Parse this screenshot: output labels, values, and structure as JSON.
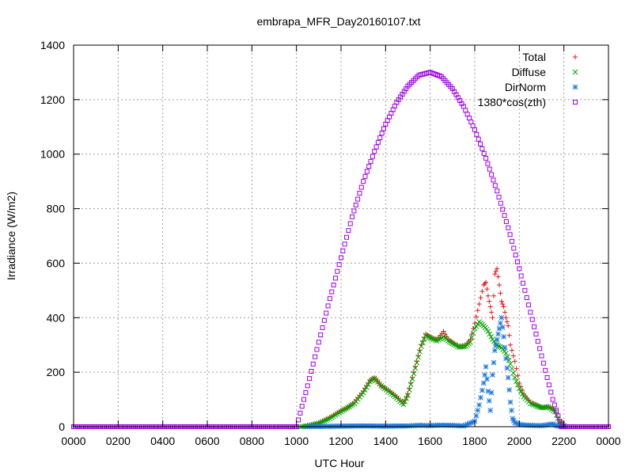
{
  "chart_data": {
    "type": "scatter",
    "title": "embrapa_MFR_Day20160107.txt",
    "xlabel": "UTC Hour",
    "ylabel": "Irradiance (W/m2)",
    "x_ticks": [
      "0000",
      "0200",
      "0400",
      "0600",
      "0800",
      "1000",
      "1200",
      "1400",
      "1600",
      "1800",
      "2000",
      "2200",
      "0000"
    ],
    "y_ticks": [
      "0",
      "200",
      "400",
      "600",
      "800",
      "1000",
      "1200",
      "1400"
    ],
    "xlim": [
      0,
      24
    ],
    "ylim": [
      0,
      1400
    ],
    "grid": true,
    "legend_position": "top-right",
    "series": [
      {
        "name": "Total",
        "color": "#e8161b",
        "marker": "plus",
        "points": [
          [
            10.5,
            5
          ],
          [
            11.0,
            15
          ],
          [
            11.5,
            35
          ],
          [
            12.0,
            60
          ],
          [
            12.3,
            70
          ],
          [
            12.6,
            90
          ],
          [
            13.0,
            130
          ],
          [
            13.3,
            170
          ],
          [
            13.5,
            180
          ],
          [
            13.8,
            150
          ],
          [
            14.2,
            130
          ],
          [
            14.5,
            110
          ],
          [
            14.8,
            85
          ],
          [
            15.0,
            120
          ],
          [
            15.2,
            180
          ],
          [
            15.4,
            240
          ],
          [
            15.6,
            300
          ],
          [
            15.8,
            340
          ],
          [
            16.0,
            330
          ],
          [
            16.3,
            320
          ],
          [
            16.6,
            350
          ],
          [
            16.8,
            320
          ],
          [
            17.0,
            310
          ],
          [
            17.3,
            295
          ],
          [
            17.6,
            300
          ],
          [
            17.8,
            320
          ],
          [
            18.0,
            380
          ],
          [
            18.2,
            450
          ],
          [
            18.4,
            520
          ],
          [
            18.5,
            530
          ],
          [
            18.6,
            480
          ],
          [
            18.7,
            440
          ],
          [
            18.8,
            400
          ],
          [
            18.9,
            560
          ],
          [
            19.0,
            580
          ],
          [
            19.1,
            520
          ],
          [
            19.2,
            460
          ],
          [
            19.3,
            440
          ],
          [
            19.4,
            400
          ],
          [
            19.5,
            370
          ],
          [
            19.6,
            300
          ],
          [
            19.8,
            240
          ],
          [
            20.0,
            160
          ],
          [
            20.2,
            120
          ],
          [
            20.5,
            90
          ],
          [
            20.8,
            80
          ],
          [
            21.0,
            70
          ],
          [
            21.3,
            75
          ],
          [
            21.6,
            60
          ],
          [
            21.8,
            20
          ],
          [
            22.0,
            5
          ]
        ]
      },
      {
        "name": "Diffuse",
        "color": "#00a000",
        "marker": "cross",
        "points": [
          [
            10.2,
            0
          ],
          [
            10.5,
            3
          ],
          [
            11.0,
            12
          ],
          [
            11.5,
            30
          ],
          [
            12.0,
            55
          ],
          [
            12.3,
            70
          ],
          [
            12.6,
            85
          ],
          [
            13.0,
            125
          ],
          [
            13.3,
            165
          ],
          [
            13.5,
            178
          ],
          [
            13.8,
            150
          ],
          [
            14.2,
            125
          ],
          [
            14.5,
            105
          ],
          [
            14.8,
            82
          ],
          [
            15.0,
            115
          ],
          [
            15.2,
            175
          ],
          [
            15.4,
            235
          ],
          [
            15.6,
            295
          ],
          [
            15.8,
            335
          ],
          [
            16.0,
            325
          ],
          [
            16.3,
            315
          ],
          [
            16.6,
            330
          ],
          [
            16.8,
            315
          ],
          [
            17.0,
            305
          ],
          [
            17.3,
            292
          ],
          [
            17.6,
            295
          ],
          [
            17.8,
            310
          ],
          [
            18.0,
            360
          ],
          [
            18.2,
            385
          ],
          [
            18.4,
            370
          ],
          [
            18.6,
            350
          ],
          [
            18.8,
            320
          ],
          [
            19.0,
            300
          ],
          [
            19.2,
            290
          ],
          [
            19.4,
            270
          ],
          [
            19.6,
            230
          ],
          [
            19.8,
            180
          ],
          [
            20.0,
            140
          ],
          [
            20.2,
            110
          ],
          [
            20.5,
            85
          ],
          [
            20.8,
            75
          ],
          [
            21.0,
            70
          ],
          [
            21.3,
            72
          ],
          [
            21.6,
            55
          ],
          [
            21.8,
            18
          ],
          [
            22.0,
            4
          ]
        ]
      },
      {
        "name": "DirNorm",
        "color": "#1e7ae0",
        "marker": "star",
        "points": [
          [
            10.5,
            0
          ],
          [
            11.0,
            1
          ],
          [
            12.0,
            2
          ],
          [
            13.0,
            3
          ],
          [
            14.0,
            2
          ],
          [
            15.0,
            3
          ],
          [
            15.5,
            5
          ],
          [
            16.0,
            4
          ],
          [
            16.5,
            6
          ],
          [
            17.0,
            5
          ],
          [
            17.5,
            3
          ],
          [
            18.0,
            20
          ],
          [
            18.2,
            80
          ],
          [
            18.4,
            160
          ],
          [
            18.5,
            220
          ],
          [
            18.6,
            130
          ],
          [
            18.7,
            60
          ],
          [
            18.8,
            190
          ],
          [
            18.9,
            280
          ],
          [
            19.0,
            320
          ],
          [
            19.1,
            360
          ],
          [
            19.2,
            400
          ],
          [
            19.3,
            330
          ],
          [
            19.4,
            250
          ],
          [
            19.5,
            180
          ],
          [
            19.6,
            90
          ],
          [
            19.7,
            30
          ],
          [
            19.8,
            15
          ],
          [
            20.0,
            8
          ],
          [
            20.5,
            5
          ],
          [
            21.0,
            4
          ],
          [
            21.5,
            10
          ],
          [
            21.7,
            3
          ],
          [
            22.0,
            0
          ]
        ]
      },
      {
        "name": "1380*cos(zth)",
        "color": "#a000e8",
        "marker": "square",
        "points": [
          [
            10.0,
            0
          ],
          [
            10.5,
            150
          ],
          [
            11.0,
            310
          ],
          [
            11.5,
            470
          ],
          [
            12.0,
            620
          ],
          [
            12.5,
            770
          ],
          [
            13.0,
            900
          ],
          [
            13.5,
            1010
          ],
          [
            14.0,
            1110
          ],
          [
            14.5,
            1190
          ],
          [
            15.0,
            1250
          ],
          [
            15.5,
            1290
          ],
          [
            16.0,
            1300
          ],
          [
            16.5,
            1285
          ],
          [
            17.0,
            1240
          ],
          [
            17.5,
            1175
          ],
          [
            18.0,
            1090
          ],
          [
            18.5,
            985
          ],
          [
            19.0,
            865
          ],
          [
            19.5,
            730
          ],
          [
            20.0,
            580
          ],
          [
            20.5,
            420
          ],
          [
            21.0,
            260
          ],
          [
            21.5,
            100
          ],
          [
            21.9,
            0
          ]
        ]
      }
    ]
  }
}
